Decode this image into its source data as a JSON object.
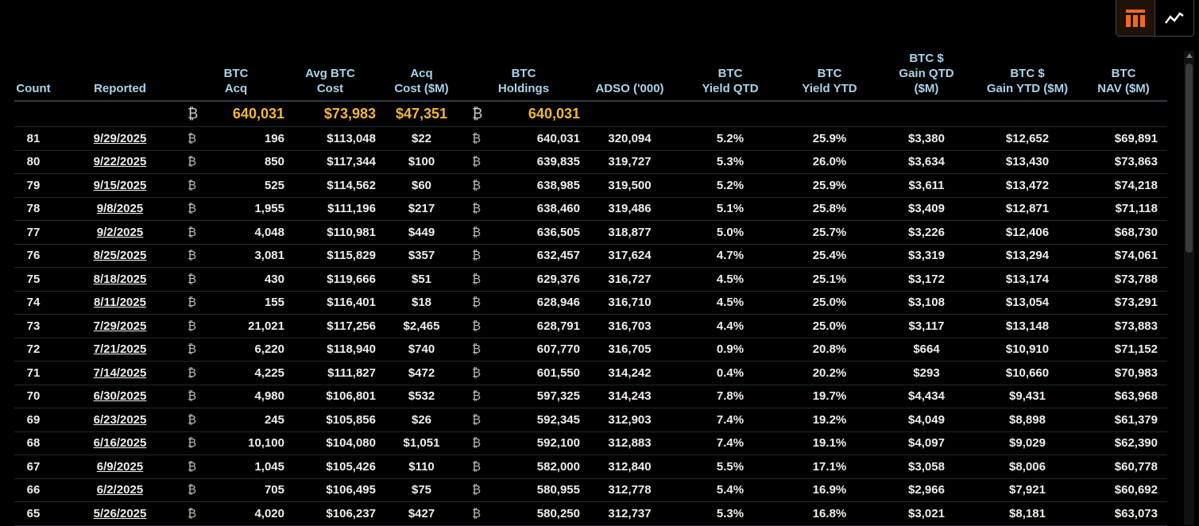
{
  "view_toggle": {
    "active": "table",
    "accent": "#f26a1b",
    "options": [
      {
        "name": "table-view",
        "icon": "table-icon"
      },
      {
        "name": "chart-view",
        "icon": "line-chart-icon"
      }
    ]
  },
  "table": {
    "btc_symbol": "₿",
    "headers": [
      [
        "Count"
      ],
      [
        "Reported"
      ],
      [
        "BTC",
        "Acq"
      ],
      [
        "Avg BTC",
        "Cost"
      ],
      [
        "Acq",
        "Cost ($M)"
      ],
      [
        "BTC",
        "Holdings"
      ],
      [
        "ADSO ('000)"
      ],
      [
        "BTC",
        "Yield QTD"
      ],
      [
        "BTC",
        "Yield YTD"
      ],
      [
        "BTC $",
        "Gain QTD",
        "($M)"
      ],
      [
        "BTC $",
        "Gain YTD ($M)"
      ],
      [
        "BTC",
        "NAV ($M)"
      ]
    ],
    "summary": {
      "btc_acq": "640,031",
      "avg_cost": "$73,983",
      "acq_cost": "$47,351",
      "holdings": "640,031"
    },
    "rows": [
      [
        "81",
        "9/29/2025",
        "196",
        "$113,048",
        "$22",
        "640,031",
        "320,094",
        "5.2%",
        "25.9%",
        "$3,380",
        "$12,652",
        "$69,891"
      ],
      [
        "80",
        "9/22/2025",
        "850",
        "$117,344",
        "$100",
        "639,835",
        "319,727",
        "5.3%",
        "26.0%",
        "$3,634",
        "$13,430",
        "$73,863"
      ],
      [
        "79",
        "9/15/2025",
        "525",
        "$114,562",
        "$60",
        "638,985",
        "319,500",
        "5.2%",
        "25.9%",
        "$3,611",
        "$13,472",
        "$74,218"
      ],
      [
        "78",
        "9/8/2025",
        "1,955",
        "$111,196",
        "$217",
        "638,460",
        "319,486",
        "5.1%",
        "25.8%",
        "$3,409",
        "$12,871",
        "$71,118"
      ],
      [
        "77",
        "9/2/2025",
        "4,048",
        "$110,981",
        "$449",
        "636,505",
        "318,877",
        "5.0%",
        "25.7%",
        "$3,226",
        "$12,406",
        "$68,730"
      ],
      [
        "76",
        "8/25/2025",
        "3,081",
        "$115,829",
        "$357",
        "632,457",
        "317,624",
        "4.7%",
        "25.4%",
        "$3,319",
        "$13,294",
        "$74,061"
      ],
      [
        "75",
        "8/18/2025",
        "430",
        "$119,666",
        "$51",
        "629,376",
        "316,727",
        "4.5%",
        "25.1%",
        "$3,172",
        "$13,174",
        "$73,788"
      ],
      [
        "74",
        "8/11/2025",
        "155",
        "$116,401",
        "$18",
        "628,946",
        "316,710",
        "4.5%",
        "25.0%",
        "$3,108",
        "$13,054",
        "$73,291"
      ],
      [
        "73",
        "7/29/2025",
        "21,021",
        "$117,256",
        "$2,465",
        "628,791",
        "316,703",
        "4.4%",
        "25.0%",
        "$3,117",
        "$13,148",
        "$73,883"
      ],
      [
        "72",
        "7/21/2025",
        "6,220",
        "$118,940",
        "$740",
        "607,770",
        "316,705",
        "0.9%",
        "20.8%",
        "$664",
        "$10,910",
        "$71,152"
      ],
      [
        "71",
        "7/14/2025",
        "4,225",
        "$111,827",
        "$472",
        "601,550",
        "314,242",
        "0.4%",
        "20.2%",
        "$293",
        "$10,660",
        "$70,983"
      ],
      [
        "70",
        "6/30/2025",
        "4,980",
        "$106,801",
        "$532",
        "597,325",
        "314,243",
        "7.8%",
        "19.7%",
        "$4,434",
        "$9,431",
        "$63,968"
      ],
      [
        "69",
        "6/23/2025",
        "245",
        "$105,856",
        "$26",
        "592,345",
        "312,903",
        "7.4%",
        "19.2%",
        "$4,049",
        "$8,898",
        "$61,379"
      ],
      [
        "68",
        "6/16/2025",
        "10,100",
        "$104,080",
        "$1,051",
        "592,100",
        "312,883",
        "7.4%",
        "19.1%",
        "$4,097",
        "$9,029",
        "$62,390"
      ],
      [
        "67",
        "6/9/2025",
        "1,045",
        "$105,426",
        "$110",
        "582,000",
        "312,840",
        "5.5%",
        "17.1%",
        "$3,058",
        "$8,006",
        "$60,778"
      ],
      [
        "66",
        "6/2/2025",
        "705",
        "$106,495",
        "$75",
        "580,955",
        "312,778",
        "5.4%",
        "16.9%",
        "$2,966",
        "$7,921",
        "$60,692"
      ],
      [
        "65",
        "5/26/2025",
        "4,020",
        "$106,237",
        "$427",
        "580,250",
        "312,737",
        "5.3%",
        "16.8%",
        "$3,021",
        "$8,181",
        "$63,073"
      ]
    ]
  }
}
